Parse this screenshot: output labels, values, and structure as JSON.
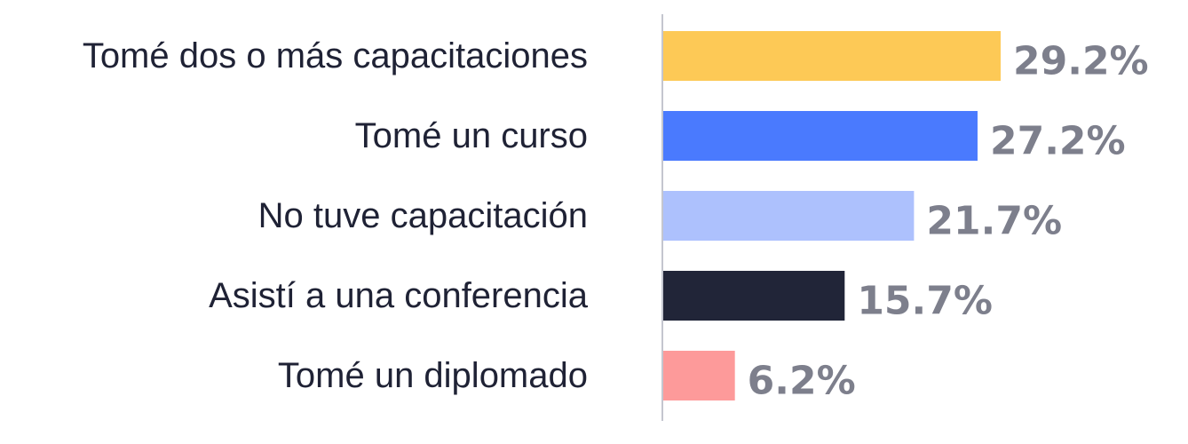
{
  "chart_data": {
    "type": "bar",
    "orientation": "horizontal",
    "categories": [
      "Tomé dos o más capacitaciones",
      "Tomé un curso",
      "No tuve capacitación",
      "Asistí a una conferencia",
      "Tomé un diplomado"
    ],
    "values": [
      29.2,
      27.2,
      21.7,
      15.7,
      6.2
    ],
    "value_labels": [
      "29.2%",
      "27.2%",
      "21.7%",
      "15.7%",
      "6.2%"
    ],
    "colors": [
      "#fdc956",
      "#4a7afe",
      "#adc1fd",
      "#212538",
      "#fd9a9a"
    ],
    "title": "",
    "xlabel": "",
    "ylabel": "",
    "xlim": [
      0,
      29.2
    ],
    "grid": false,
    "legend": "none"
  }
}
